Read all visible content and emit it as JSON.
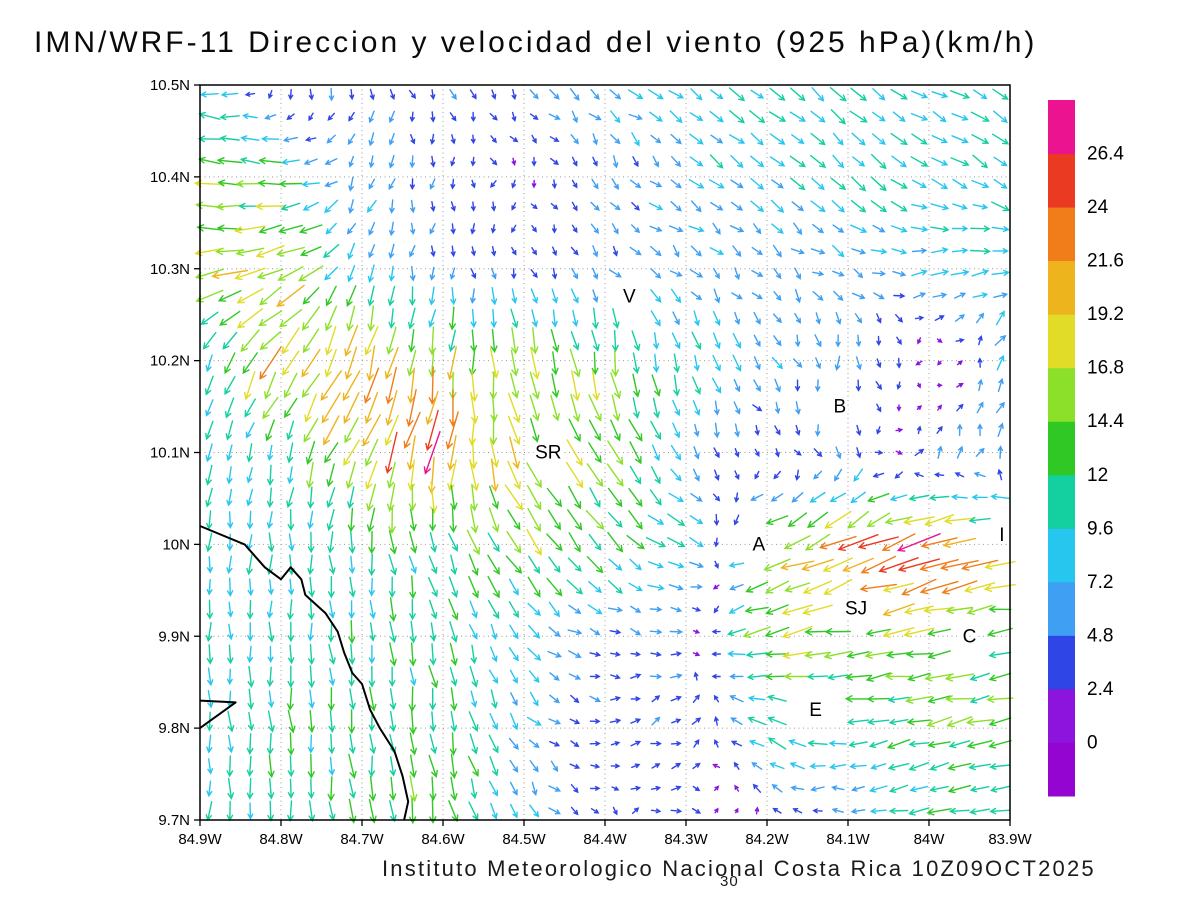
{
  "title": "IMN/WRF-11 Direccion y velocidad del viento (925 hPa)(km/h)",
  "caption": "Instituto Meteorologico Nacional Costa Rica 10Z09OCT2025",
  "page_number": "30",
  "axes": {
    "lat_ticks": [
      "10.5N",
      "10.4N",
      "10.3N",
      "10.2N",
      "10.1N",
      "10N",
      "9.9N",
      "9.8N",
      "9.7N"
    ],
    "lon_ticks": [
      "84.9W",
      "84.8W",
      "84.7W",
      "84.6W",
      "84.5W",
      "84.4W",
      "84.3W",
      "84.2W",
      "84.1W",
      "84W",
      "83.9W"
    ]
  },
  "colorbar": {
    "labels_top_to_bottom": [
      "26.4",
      "24",
      "21.6",
      "19.2",
      "16.8",
      "14.4",
      "12",
      "9.6",
      "7.2",
      "4.8",
      "2.4",
      "0"
    ],
    "colors_bottom_to_top": [
      "#9405d2",
      "#8c14dc",
      "#2f45e6",
      "#3f9ff2",
      "#27c6ee",
      "#14cfa0",
      "#2fc825",
      "#8ce02a",
      "#e0dc28",
      "#eeb41e",
      "#f07d1a",
      "#ea3a21",
      "#ec1390"
    ]
  },
  "stations": [
    {
      "label": "V",
      "lon_w": 84.37,
      "lat_n": 10.27
    },
    {
      "label": "B",
      "lon_w": 84.11,
      "lat_n": 10.15
    },
    {
      "label": "SR",
      "lon_w": 84.47,
      "lat_n": 10.1
    },
    {
      "label": "A",
      "lon_w": 84.21,
      "lat_n": 10.0
    },
    {
      "label": "I",
      "lon_w": 83.91,
      "lat_n": 10.01
    },
    {
      "label": "SJ",
      "lon_w": 84.09,
      "lat_n": 9.93
    },
    {
      "label": "C",
      "lon_w": 83.95,
      "lat_n": 9.9
    },
    {
      "label": "E",
      "lon_w": 84.14,
      "lat_n": 9.82
    }
  ],
  "coastline": [
    [
      [
        84.9,
        10.02
      ],
      [
        84.845,
        10.0
      ],
      [
        84.82,
        9.975
      ],
      [
        84.8,
        9.962
      ],
      [
        84.788,
        9.975
      ],
      [
        84.775,
        9.962
      ],
      [
        84.77,
        9.945
      ],
      [
        84.745,
        9.925
      ],
      [
        84.73,
        9.905
      ],
      [
        84.722,
        9.882
      ],
      [
        84.712,
        9.86
      ],
      [
        84.7,
        9.848
      ],
      [
        84.69,
        9.82
      ],
      [
        84.678,
        9.8
      ],
      [
        84.66,
        9.775
      ],
      [
        84.65,
        9.748
      ],
      [
        84.643,
        9.72
      ],
      [
        84.648,
        9.7
      ]
    ],
    [
      [
        84.9,
        9.83
      ],
      [
        84.856,
        9.828
      ],
      [
        84.9,
        9.8
      ]
    ]
  ],
  "chart_data": {
    "type": "vector_field",
    "title": "IMN/WRF-11 Direccion y velocidad del viento (925 hPa)(km/h)",
    "units": "km/h",
    "level": "925 hPa",
    "valid": "10Z09OCT2025",
    "lat_range": [
      9.7,
      10.5
    ],
    "lon_range_w": [
      84.9,
      83.9
    ],
    "speed_levels_kmh": [
      0,
      2.4,
      4.8,
      7.2,
      9.6,
      12,
      14.4,
      16.8,
      19.2,
      21.6,
      24,
      26.4
    ],
    "grid": {
      "lons_w": [
        84.9,
        84.8,
        84.7,
        84.6,
        84.5,
        84.4,
        84.3,
        84.2,
        84.1,
        84.0,
        83.9
      ],
      "lats_n": [
        10.5,
        10.4,
        10.3,
        10.2,
        10.1,
        10.0,
        9.9,
        9.8,
        9.7
      ],
      "u_kmh": [
        [
          -13,
          3,
          0,
          2,
          3,
          6,
          7,
          7,
          7,
          8,
          8
        ],
        [
          -15,
          -13,
          -2,
          0,
          1,
          2,
          6,
          7,
          7,
          8,
          8
        ],
        [
          -20,
          -16,
          -2,
          0,
          1,
          3,
          5,
          3,
          6,
          8,
          10
        ],
        [
          -3,
          -12,
          -6,
          -3,
          4,
          2,
          2,
          4,
          1,
          -1,
          2
        ],
        [
          -2,
          -2,
          -10,
          -4,
          6,
          8,
          3,
          2,
          1,
          3,
          2
        ],
        [
          -1,
          0,
          1,
          4,
          9,
          8,
          10,
          -14,
          -20,
          -24,
          -18
        ],
        [
          0,
          0,
          1,
          2,
          5,
          5,
          4,
          -16,
          -15,
          -16,
          -12
        ],
        [
          0,
          1,
          1,
          2,
          4,
          4,
          4,
          -10,
          -10,
          -12,
          -13
        ],
        [
          -1,
          0,
          1,
          3,
          5,
          2,
          4,
          -2,
          -4,
          -11,
          -12
        ]
      ],
      "v_kmh": [
        [
          2,
          -5,
          -5,
          -4,
          -4,
          -4,
          -5,
          -6,
          -7,
          -4,
          -5
        ],
        [
          3,
          2,
          -6,
          -4,
          -2,
          -4,
          -5,
          -5,
          -6,
          -5,
          -5
        ],
        [
          -2,
          -8,
          -8,
          -5,
          -3,
          -4,
          -4,
          -4,
          -3,
          2,
          1
        ],
        [
          -8,
          -18,
          -18,
          -17,
          -16,
          -14,
          -10,
          -6,
          -6,
          -2,
          8
        ],
        [
          -9,
          -9,
          -18,
          -24,
          -15,
          -14,
          -6,
          -2,
          -5,
          4,
          6
        ],
        [
          -9,
          -9,
          -11,
          -11,
          -12,
          -9,
          -3,
          -5,
          -10,
          -8,
          -2
        ],
        [
          -9,
          -9,
          -11,
          -11,
          -7,
          -2,
          2,
          -4,
          -2,
          -2,
          -2
        ],
        [
          -9,
          -11,
          -12,
          -12,
          -6,
          0,
          3,
          5,
          -1,
          -3,
          -2
        ],
        [
          -9,
          -11,
          -12,
          -14,
          -6,
          -1,
          -1,
          1,
          -1,
          -2,
          -3
        ]
      ]
    }
  }
}
